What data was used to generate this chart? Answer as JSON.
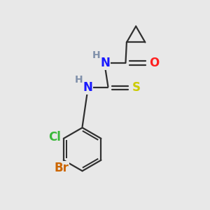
{
  "background_color": "#e8e8e8",
  "bond_color": "#303030",
  "bond_width": 1.6,
  "atom_colors": {
    "N": "#1a1aff",
    "O": "#ff2020",
    "S": "#cccc00",
    "Cl": "#3ab83a",
    "Br": "#cc6600",
    "C": "#303030",
    "H": "#8090aa"
  },
  "font_size_atoms": 12,
  "font_size_H": 10
}
